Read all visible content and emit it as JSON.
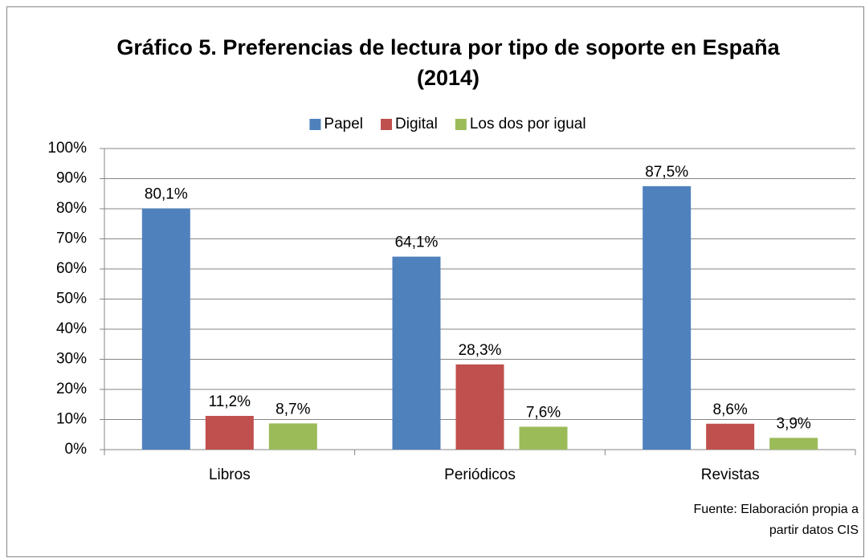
{
  "chart_data": {
    "type": "bar",
    "title": "Gráfico 5. Preferencias de lectura por tipo de soporte en España (2014)",
    "categories": [
      "Libros",
      "Periódicos",
      "Revistas"
    ],
    "series": [
      {
        "name": "Papel",
        "color": "#4f81bd",
        "values": [
          80.1,
          64.1,
          87.5
        ],
        "value_labels": [
          "80,1%",
          "64,1%",
          "87,5%"
        ]
      },
      {
        "name": "Digital",
        "color": "#c0504d",
        "values": [
          11.2,
          28.3,
          8.6
        ],
        "value_labels": [
          "11,2%",
          "28,3%",
          "8,6%"
        ]
      },
      {
        "name": "Los dos por igual",
        "color": "#9bbb59",
        "values": [
          8.7,
          7.6,
          3.9
        ],
        "value_labels": [
          "8,7%",
          "7,6%",
          "3,9%"
        ]
      }
    ],
    "ylim": [
      0,
      100
    ],
    "yticks": [
      {
        "value": 0,
        "label": "0%"
      },
      {
        "value": 10,
        "label": "10%"
      },
      {
        "value": 20,
        "label": "20%"
      },
      {
        "value": 30,
        "label": "30%"
      },
      {
        "value": 40,
        "label": "40%"
      },
      {
        "value": 50,
        "label": "50%"
      },
      {
        "value": 60,
        "label": "60%"
      },
      {
        "value": 70,
        "label": "70%"
      },
      {
        "value": 80,
        "label": "80%"
      },
      {
        "value": 90,
        "label": "90%"
      },
      {
        "value": 100,
        "label": "100%"
      }
    ],
    "grid": true,
    "legend": "top",
    "source": "Fuente: Elaboración propia a partir datos CIS"
  }
}
